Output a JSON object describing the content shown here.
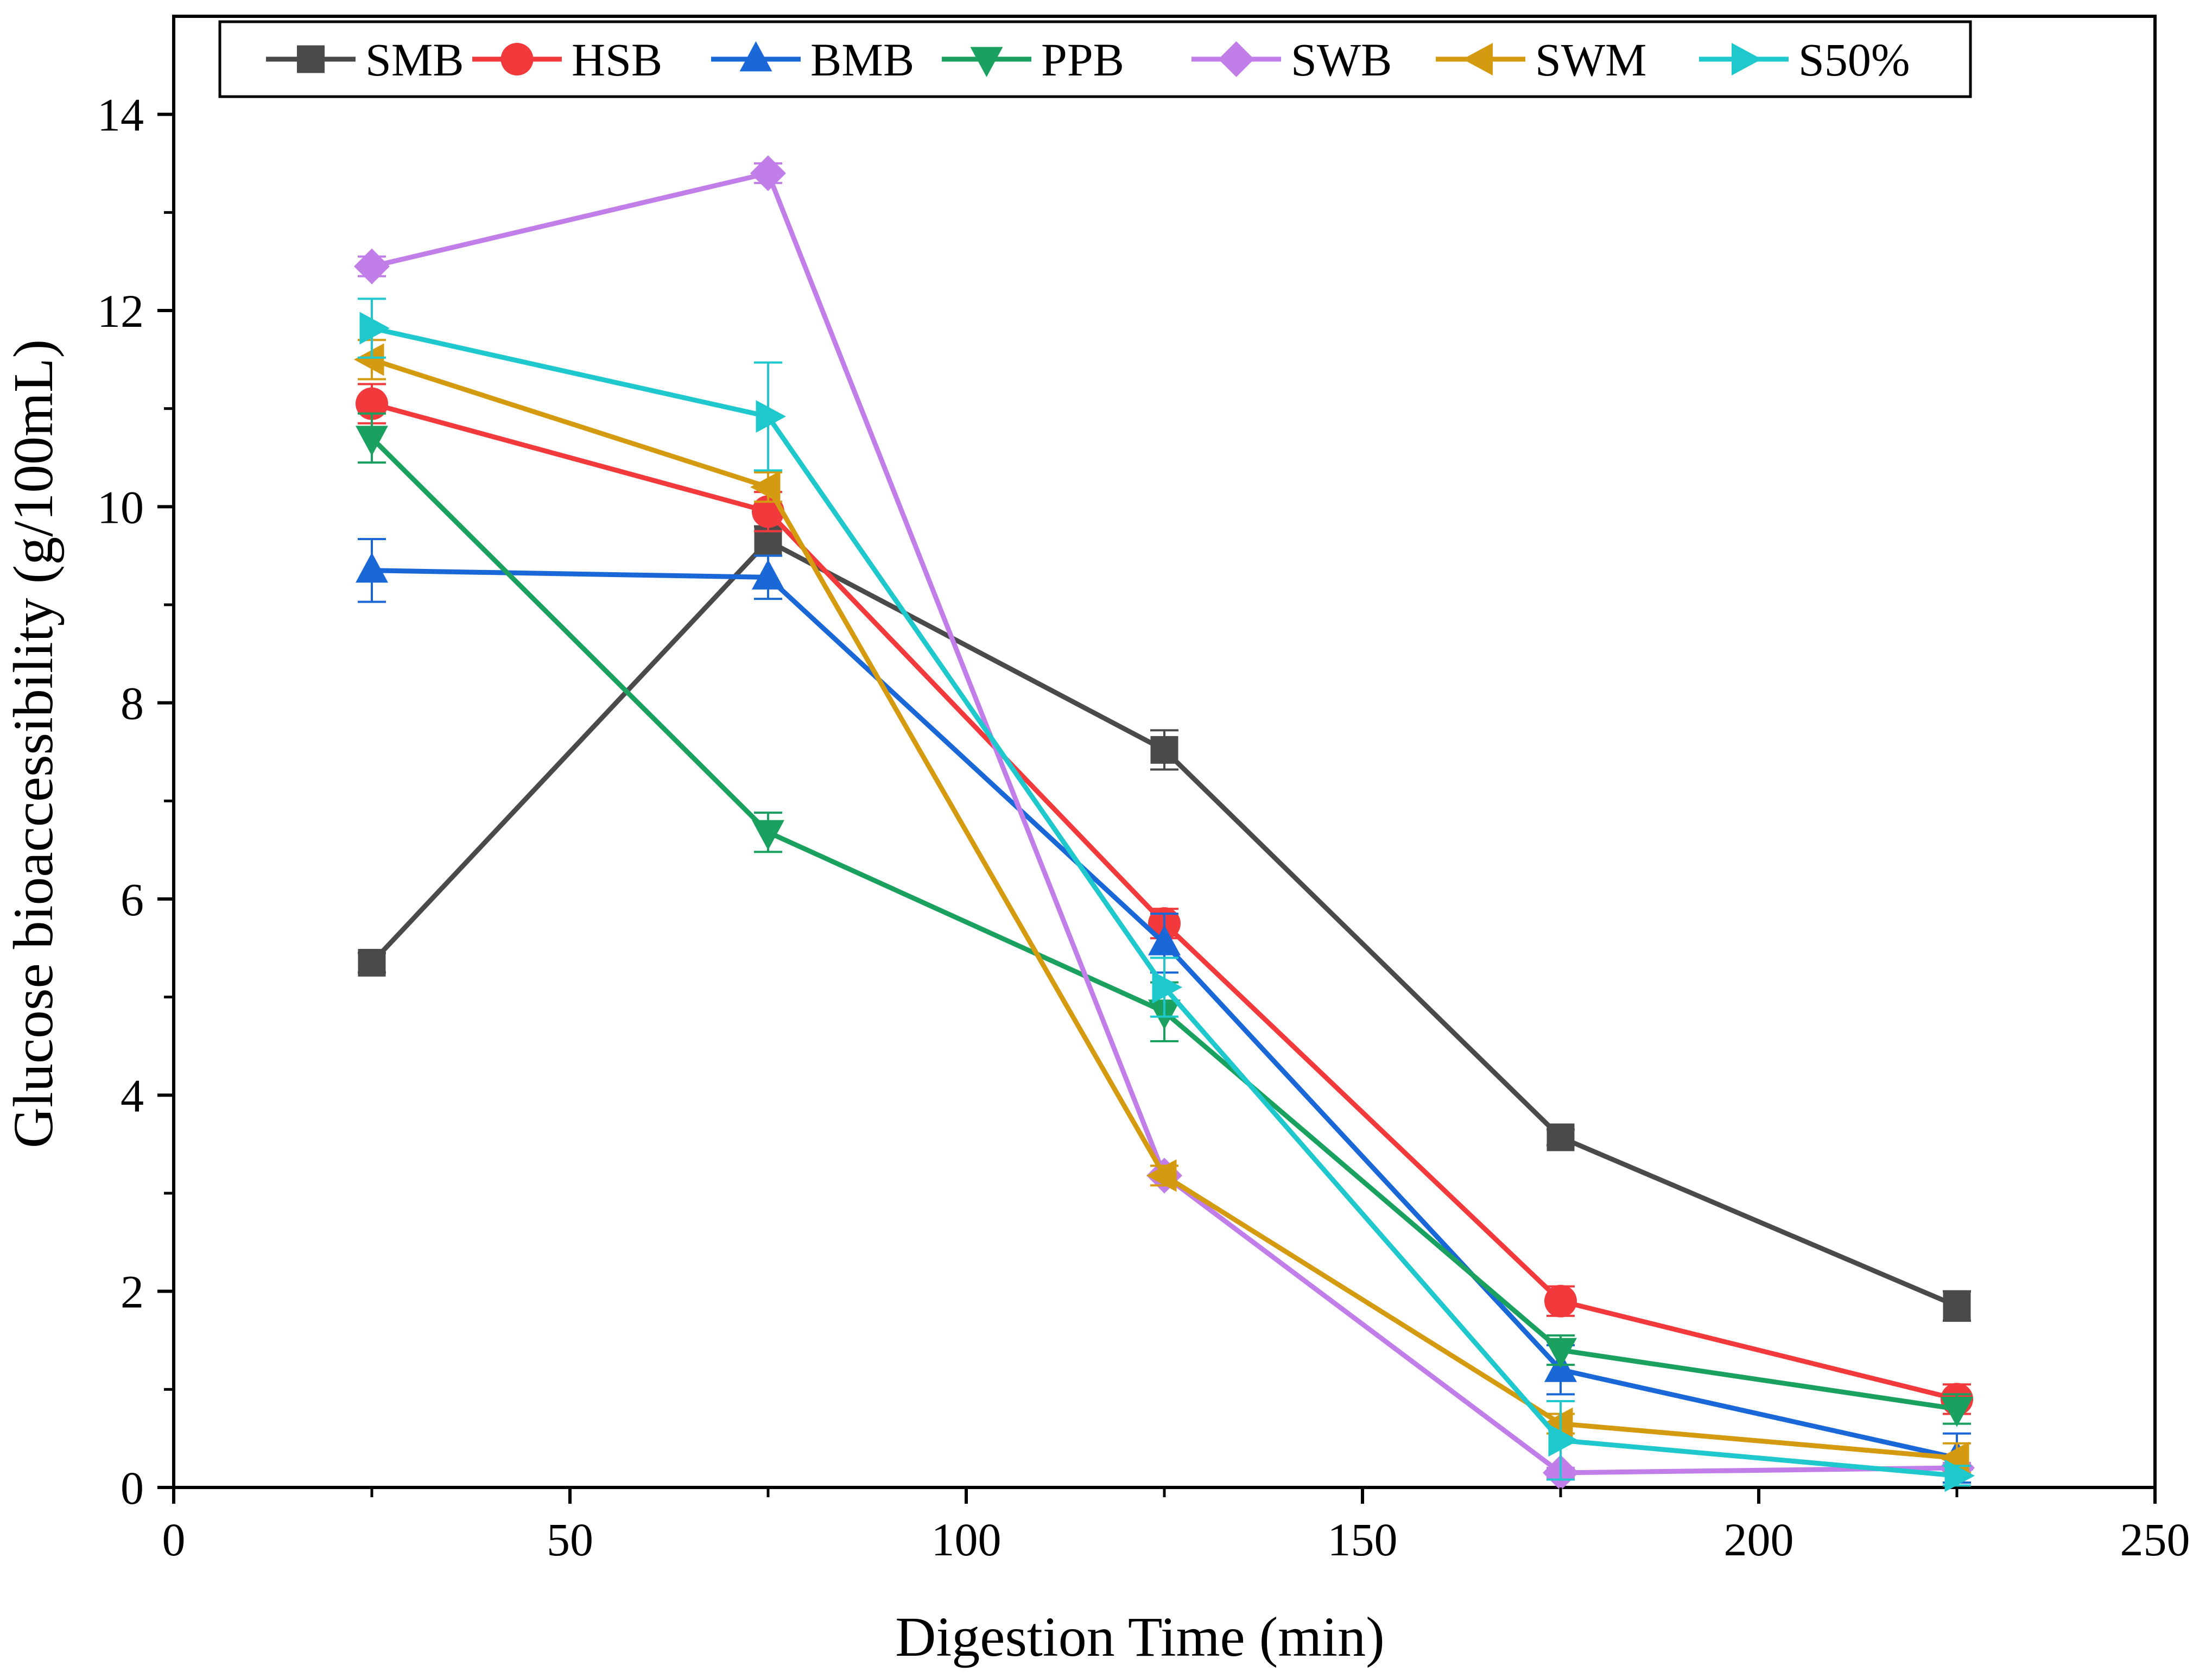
{
  "chart_data": {
    "type": "line",
    "title": "",
    "xlabel": "Digestion Time (min)",
    "ylabel": "Glucose bioaccessibility (g/100mL)",
    "xlim": [
      0,
      250
    ],
    "ylim": [
      0,
      15
    ],
    "xticks": [
      0,
      50,
      100,
      150,
      200,
      250
    ],
    "yticks": [
      0,
      2,
      4,
      6,
      8,
      10,
      12,
      14
    ],
    "grid": false,
    "legend_position": "top",
    "x": [
      25,
      75,
      125,
      175,
      225
    ],
    "series": [
      {
        "name": "SMB",
        "color": "#4a4a4a",
        "marker": "square",
        "values": [
          5.35,
          9.65,
          7.52,
          3.57,
          1.85
        ],
        "errors": [
          0.1,
          0.15,
          0.2,
          0.08,
          0.15
        ]
      },
      {
        "name": "HSB",
        "color": "#f2393b",
        "marker": "circle",
        "values": [
          11.05,
          9.95,
          5.75,
          1.9,
          0.9
        ],
        "errors": [
          0.2,
          0.2,
          0.15,
          0.15,
          0.15
        ]
      },
      {
        "name": "BMB",
        "color": "#1a67d8",
        "marker": "triangle-up",
        "values": [
          9.35,
          9.28,
          5.55,
          1.2,
          0.3
        ],
        "errors": [
          0.32,
          0.22,
          0.3,
          0.25,
          0.25
        ]
      },
      {
        "name": "PPB",
        "color": "#1aa160",
        "marker": "triangle-down",
        "values": [
          10.7,
          6.68,
          4.85,
          1.4,
          0.8
        ],
        "errors": [
          0.25,
          0.2,
          0.3,
          0.15,
          0.15
        ]
      },
      {
        "name": "SWB",
        "color": "#c27ee8",
        "marker": "diamond",
        "values": [
          12.45,
          13.4,
          3.18,
          0.15,
          0.2
        ],
        "errors": [
          0.1,
          0.1,
          0.1,
          0.05,
          0.05
        ]
      },
      {
        "name": "SWM",
        "color": "#d49a10",
        "marker": "triangle-left",
        "values": [
          11.5,
          10.2,
          3.18,
          0.65,
          0.3
        ],
        "errors": [
          0.2,
          0.15,
          0.1,
          0.1,
          0.15
        ]
      },
      {
        "name": "S50%",
        "color": "#1ec8cc",
        "marker": "triangle-right",
        "values": [
          11.82,
          10.92,
          5.1,
          0.48,
          0.12
        ],
        "errors": [
          0.3,
          0.55,
          0.3,
          0.4,
          0.1
        ]
      }
    ]
  }
}
